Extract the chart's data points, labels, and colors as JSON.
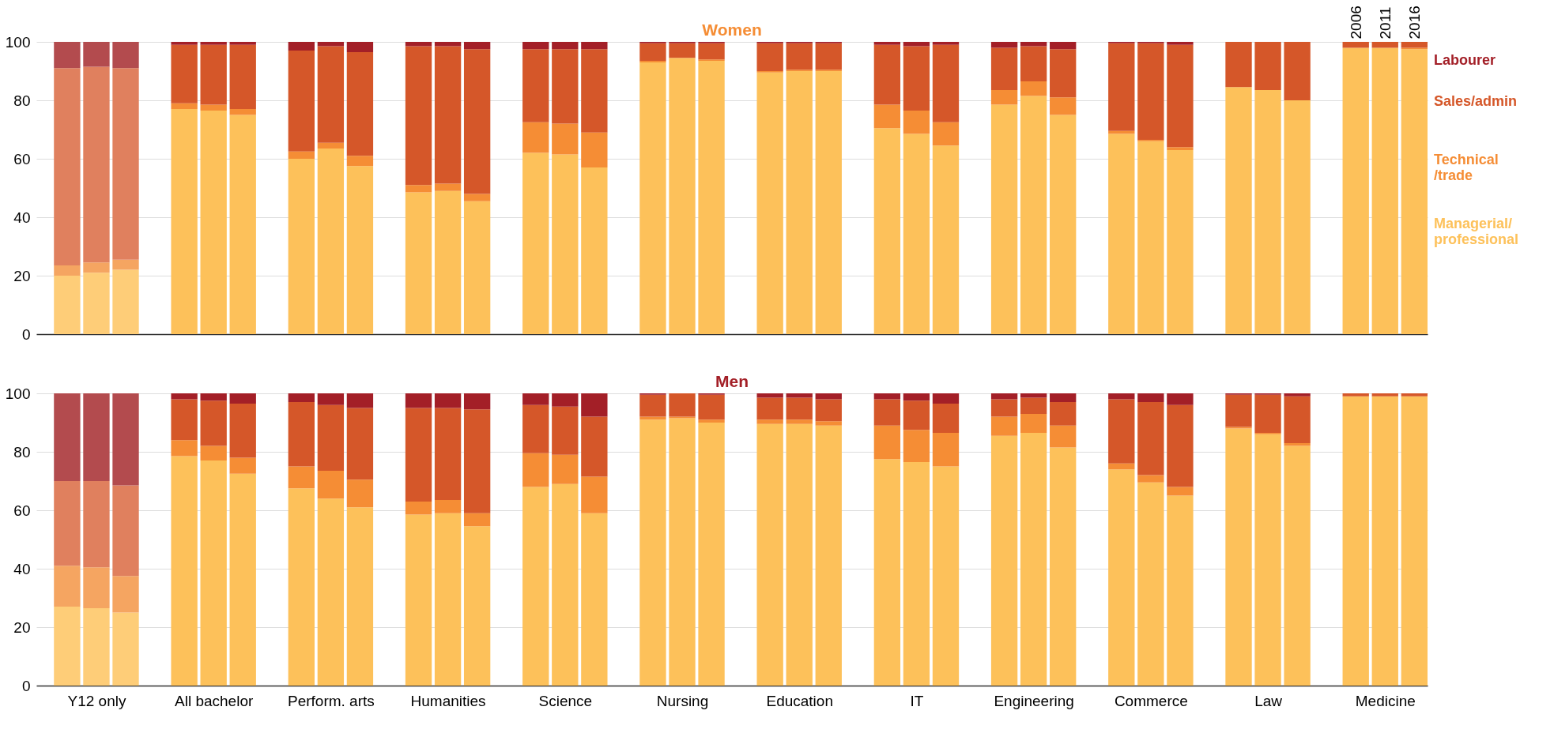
{
  "chart_data": [
    {
      "type": "bar",
      "title": "Women",
      "stacked": true,
      "legend": "right",
      "grid": "y",
      "ylim": [
        0,
        100
      ],
      "yticks": [
        0,
        20,
        40,
        60,
        80,
        100
      ],
      "categories": [
        null,
        null,
        null,
        null,
        null,
        null,
        null,
        null,
        null,
        null,
        null,
        null,
        null,
        null,
        null,
        null,
        null,
        null,
        null,
        null,
        null,
        null,
        null,
        null,
        null,
        null,
        null,
        null,
        null,
        null,
        null,
        null,
        null,
        null,
        null,
        null,
        null,
        null,
        null,
        null,
        null,
        null,
        null,
        null,
        "2006",
        "2011",
        "2016"
      ],
      "series": [
        {
          "name": "Managerial/ professional",
          "color": "#fdc15a",
          "colors": [
            "#fecd78",
            "#fecd78",
            "#fecd78",
            null,
            "#fdc15a",
            "#fdc15a",
            "#fdc15a",
            null,
            "#fdc15a",
            "#fdc15a",
            "#fdc15a",
            null,
            "#fdc15a",
            "#fdc15a",
            "#fdc15a",
            null,
            "#fdc15a",
            "#fdc15a",
            "#fdc15a",
            null,
            "#fdc15a",
            "#fdc15a",
            "#fdc15a",
            null,
            "#fdc15a",
            "#fdc15a",
            "#fdc15a",
            null,
            "#fdc15a",
            "#fdc15a",
            "#fdc15a",
            null,
            "#fdc15a",
            "#fdc15a",
            "#fdc15a",
            null,
            "#fdc15a",
            "#fdc15a",
            "#fdc15a",
            null,
            "#fdc15a",
            "#fdc15a",
            "#fdc15a",
            null,
            "#fdc15a",
            "#fdc15a",
            "#fdc15a"
          ],
          "values": [
            20,
            21,
            22,
            null,
            77,
            76.5,
            75,
            null,
            60,
            63.5,
            57.5,
            null,
            48.5,
            49,
            45.5,
            null,
            62,
            61.5,
            57,
            null,
            93,
            94.5,
            93.5,
            null,
            89.5,
            90,
            90,
            null,
            70.5,
            68.5,
            64.5,
            null,
            78.5,
            81.5,
            75,
            null,
            68.5,
            66,
            63,
            null,
            84.5,
            83.5,
            80,
            null,
            98,
            98,
            97.5
          ]
        },
        {
          "name": "Technical /trade",
          "color": "#f58d35",
          "colors": [
            "#f5a561",
            "#f5a561",
            "#f5a561",
            null,
            "#f58d35",
            "#f58d35",
            "#f58d35",
            null,
            "#f58d35",
            "#f58d35",
            "#f58d35",
            null,
            "#f58d35",
            "#f58d35",
            "#f58d35",
            null,
            "#f58d35",
            "#f58d35",
            "#f58d35",
            null,
            "#f58d35",
            "#f58d35",
            "#f58d35",
            null,
            "#f58d35",
            "#f58d35",
            "#f58d35",
            null,
            "#f58d35",
            "#f58d35",
            "#f58d35",
            null,
            "#f58d35",
            "#f58d35",
            "#f58d35",
            null,
            "#f58d35",
            "#f58d35",
            "#f58d35",
            null,
            "#f58d35",
            "#f58d35",
            "#f58d35",
            null,
            "#f58d35",
            "#f58d35",
            "#f58d35"
          ],
          "values": [
            3.5,
            3.5,
            3.5,
            null,
            2,
            2,
            2,
            null,
            2.5,
            2,
            3.5,
            null,
            2.5,
            2.5,
            2.5,
            null,
            10.5,
            10.5,
            12,
            null,
            0.5,
            0,
            0.5,
            null,
            0.5,
            0.5,
            0.5,
            null,
            8,
            8,
            8,
            null,
            5,
            5,
            6,
            null,
            1,
            0.5,
            1,
            null,
            0,
            0,
            0,
            null,
            0,
            0,
            0.5
          ]
        },
        {
          "name": "Sales/admin",
          "color": "#d55729",
          "colors": [
            "#e0805e",
            "#e0805e",
            "#e0805e",
            null,
            "#d55729",
            "#d55729",
            "#d55729",
            null,
            "#d55729",
            "#d55729",
            "#d55729",
            null,
            "#d55729",
            "#d55729",
            "#d55729",
            null,
            "#d55729",
            "#d55729",
            "#d55729",
            null,
            "#d55729",
            "#d55729",
            "#d55729",
            null,
            "#d55729",
            "#d55729",
            "#d55729",
            null,
            "#d55729",
            "#d55729",
            "#d55729",
            null,
            "#d55729",
            "#d55729",
            "#d55729",
            null,
            "#d55729",
            "#d55729",
            "#d55729",
            null,
            "#d55729",
            "#d55729",
            "#d55729",
            null,
            "#d55729",
            "#d55729",
            "#d55729"
          ],
          "values": [
            67.5,
            67,
            65.5,
            null,
            20,
            20.5,
            22,
            null,
            34.5,
            33,
            35.5,
            null,
            47.5,
            47,
            49.5,
            null,
            25,
            25.5,
            28.5,
            null,
            6,
            5,
            5.5,
            null,
            9.5,
            9,
            9,
            null,
            20.5,
            22,
            26.5,
            null,
            14.5,
            12,
            16.5,
            null,
            30,
            33,
            35,
            null,
            15.5,
            16.5,
            20,
            null,
            2,
            2,
            2
          ]
        },
        {
          "name": "Labourer",
          "color": "#a31f27",
          "colors": [
            "#b34b4e",
            "#b34b4e",
            "#b34b4e",
            null,
            "#a31f27",
            "#a31f27",
            "#a31f27",
            null,
            "#a31f27",
            "#a31f27",
            "#a31f27",
            null,
            "#a31f27",
            "#a31f27",
            "#a31f27",
            null,
            "#a31f27",
            "#a31f27",
            "#a31f27",
            null,
            "#a31f27",
            "#a31f27",
            "#a31f27",
            null,
            "#a31f27",
            "#a31f27",
            "#a31f27",
            null,
            "#a31f27",
            "#a31f27",
            "#a31f27",
            null,
            "#a31f27",
            "#a31f27",
            "#a31f27",
            null,
            "#a31f27",
            "#a31f27",
            "#a31f27",
            null,
            "#a31f27",
            "#a31f27",
            "#a31f27",
            null,
            "#a31f27",
            "#a31f27",
            "#a31f27"
          ],
          "values": [
            9,
            8.5,
            9,
            null,
            1,
            1,
            1,
            null,
            3,
            1.5,
            3.5,
            null,
            1.5,
            1.5,
            2.5,
            null,
            2.5,
            2.5,
            2.5,
            null,
            0.5,
            0.5,
            0.5,
            null,
            0.5,
            0.5,
            0.5,
            null,
            1,
            1.5,
            1,
            null,
            2,
            1.5,
            2.5,
            null,
            0.5,
            0.5,
            1,
            null,
            0,
            0,
            0,
            null,
            0,
            0,
            0
          ]
        }
      ]
    },
    {
      "type": "bar",
      "title": "Men",
      "stacked": true,
      "grid": "y",
      "ylim": [
        0,
        100
      ],
      "yticks": [
        0,
        20,
        40,
        60,
        80,
        100
      ],
      "categories": [
        null,
        "Y12 only",
        null,
        null,
        null,
        "All bachelor",
        null,
        null,
        null,
        "Perform. arts",
        null,
        null,
        null,
        "Humanities",
        null,
        null,
        null,
        "Science",
        null,
        null,
        null,
        "Nursing",
        null,
        null,
        null,
        "Education",
        null,
        null,
        null,
        "IT",
        null,
        null,
        null,
        "Engineering",
        null,
        null,
        null,
        "Commerce",
        null,
        null,
        null,
        "Law",
        null,
        null,
        null,
        "Medicine",
        null
      ],
      "series": [
        {
          "colors": [
            "#fecd78",
            "#fecd78",
            "#fecd78",
            null,
            "#fdc15a",
            "#fdc15a",
            "#fdc15a",
            null,
            "#fdc15a",
            "#fdc15a",
            "#fdc15a",
            null,
            "#fdc15a",
            "#fdc15a",
            "#fdc15a",
            null,
            "#fdc15a",
            "#fdc15a",
            "#fdc15a",
            null,
            "#fdc15a",
            "#fdc15a",
            "#fdc15a",
            null,
            "#fdc15a",
            "#fdc15a",
            "#fdc15a",
            null,
            "#fdc15a",
            "#fdc15a",
            "#fdc15a",
            null,
            "#fdc15a",
            "#fdc15a",
            "#fdc15a",
            null,
            "#fdc15a",
            "#fdc15a",
            "#fdc15a",
            null,
            "#fdc15a",
            "#fdc15a",
            "#fdc15a",
            null,
            "#fdc15a",
            "#fdc15a",
            "#fdc15a"
          ],
          "values": [
            27,
            26.5,
            25,
            null,
            78.5,
            77,
            72.5,
            null,
            67.5,
            64,
            61,
            null,
            58.5,
            59,
            54.5,
            null,
            68,
            69,
            59,
            null,
            91,
            91.5,
            90,
            null,
            89.5,
            89.5,
            89,
            null,
            77.5,
            76.5,
            75,
            null,
            85.5,
            86.5,
            81.5,
            null,
            74,
            69.5,
            65,
            null,
            88,
            86,
            82,
            null,
            99,
            99,
            99
          ]
        },
        {
          "colors": [
            "#f5a561",
            "#f5a561",
            "#f5a561",
            null,
            "#f58d35",
            "#f58d35",
            "#f58d35",
            null,
            "#f58d35",
            "#f58d35",
            "#f58d35",
            null,
            "#f58d35",
            "#f58d35",
            "#f58d35",
            null,
            "#f58d35",
            "#f58d35",
            "#f58d35",
            null,
            "#f58d35",
            "#f58d35",
            "#f58d35",
            null,
            "#f58d35",
            "#f58d35",
            "#f58d35",
            null,
            "#f58d35",
            "#f58d35",
            "#f58d35",
            null,
            "#f58d35",
            "#f58d35",
            "#f58d35",
            null,
            "#f58d35",
            "#f58d35",
            "#f58d35",
            null,
            "#f58d35",
            "#f58d35",
            "#f58d35",
            null,
            "#f58d35",
            "#f58d35",
            "#f58d35"
          ],
          "values": [
            14,
            14,
            12.5,
            null,
            5.5,
            5,
            5.5,
            null,
            7.5,
            9.5,
            9.5,
            null,
            4.5,
            4.5,
            4.5,
            null,
            11.5,
            10,
            12.5,
            null,
            1,
            0.5,
            1,
            null,
            1.5,
            1.5,
            1.5,
            null,
            11.5,
            11,
            11.5,
            null,
            6.5,
            6.5,
            7.5,
            null,
            2,
            2.5,
            3,
            null,
            0.5,
            0.5,
            1,
            null,
            0,
            0,
            0
          ]
        },
        {
          "colors": [
            "#e0805e",
            "#e0805e",
            "#e0805e",
            null,
            "#d55729",
            "#d55729",
            "#d55729",
            null,
            "#d55729",
            "#d55729",
            "#d55729",
            null,
            "#d55729",
            "#d55729",
            "#d55729",
            null,
            "#d55729",
            "#d55729",
            "#d55729",
            null,
            "#d55729",
            "#d55729",
            "#d55729",
            null,
            "#d55729",
            "#d55729",
            "#d55729",
            null,
            "#d55729",
            "#d55729",
            "#d55729",
            null,
            "#d55729",
            "#d55729",
            "#d55729",
            null,
            "#d55729",
            "#d55729",
            "#d55729",
            null,
            "#d55729",
            "#d55729",
            "#d55729",
            null,
            "#d55729",
            "#d55729",
            "#d55729"
          ],
          "values": [
            29,
            29.5,
            31,
            null,
            14,
            15.5,
            18.5,
            null,
            22,
            22.5,
            24.5,
            null,
            32,
            31.5,
            35.5,
            null,
            16.5,
            16.5,
            20.5,
            null,
            7.5,
            8,
            8.5,
            null,
            7.5,
            7.5,
            7.5,
            null,
            9,
            10,
            10,
            null,
            6,
            5.5,
            8,
            null,
            22,
            25,
            28,
            null,
            11,
            13,
            16,
            null,
            1,
            1,
            1
          ]
        },
        {
          "colors": [
            "#b34b4e",
            "#b34b4e",
            "#b34b4e",
            null,
            "#a31f27",
            "#a31f27",
            "#a31f27",
            null,
            "#a31f27",
            "#a31f27",
            "#a31f27",
            null,
            "#a31f27",
            "#a31f27",
            "#a31f27",
            null,
            "#a31f27",
            "#a31f27",
            "#a31f27",
            null,
            "#a31f27",
            "#a31f27",
            "#a31f27",
            null,
            "#a31f27",
            "#a31f27",
            "#a31f27",
            null,
            "#a31f27",
            "#a31f27",
            "#a31f27",
            null,
            "#a31f27",
            "#a31f27",
            "#a31f27",
            null,
            "#a31f27",
            "#a31f27",
            "#a31f27",
            null,
            "#a31f27",
            "#a31f27",
            "#a31f27",
            null,
            "#a31f27",
            "#a31f27",
            "#a31f27"
          ],
          "values": [
            30,
            30,
            31.5,
            null,
            2,
            2.5,
            3.5,
            null,
            3,
            4,
            5,
            null,
            5,
            5,
            5.5,
            null,
            4,
            4.5,
            8,
            null,
            0.5,
            0,
            0.5,
            null,
            1.5,
            1.5,
            2,
            null,
            2,
            2.5,
            3.5,
            null,
            2,
            1.5,
            3,
            null,
            2,
            3,
            4,
            null,
            0.5,
            0.5,
            1,
            null,
            0,
            0,
            0
          ]
        }
      ]
    }
  ]
}
